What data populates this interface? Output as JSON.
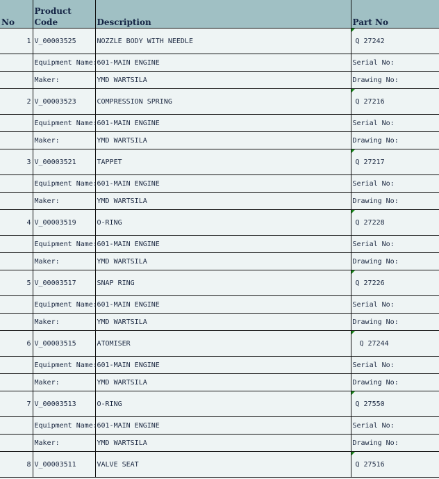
{
  "header": {
    "no": "No",
    "product_code": "Product Code",
    "description": "Description",
    "part_no": "Part No"
  },
  "labels": {
    "equipment": "Equipment Name:",
    "maker": "Maker:",
    "serial": "Serial No:",
    "drawing": "Drawing No:"
  },
  "colors": {
    "header_bg": "#a0c0c4",
    "body_bg": "#eef4f4",
    "comment_marker": "#1a8a1a"
  },
  "items": [
    {
      "no": "1",
      "code": "V_00003525",
      "description": "NOZZLE BODY WITH NEEDLE",
      "part_no": "Q 27242",
      "equipment": "601-MAIN ENGINE",
      "maker": "YMD WARTSILA"
    },
    {
      "no": "2",
      "code": "V_00003523",
      "description": "COMPRESSION SPRING",
      "part_no": "Q 27216",
      "equipment": "601-MAIN ENGINE",
      "maker": "YMD WARTSILA"
    },
    {
      "no": "3",
      "code": "V_00003521",
      "description": "TAPPET",
      "part_no": "Q 27217",
      "equipment": "601-MAIN ENGINE",
      "maker": "YMD WARTSILA"
    },
    {
      "no": "4",
      "code": "V_00003519",
      "description": "O-RING",
      "part_no": "Q 27228",
      "equipment": "601-MAIN ENGINE",
      "maker": "YMD WARTSILA"
    },
    {
      "no": "5",
      "code": "V_00003517",
      "description": "SNAP RING",
      "part_no": "Q 27226",
      "equipment": "601-MAIN ENGINE",
      "maker": "YMD WARTSILA"
    },
    {
      "no": "6",
      "code": "V_00003515",
      "description": "ATOMISER",
      "part_no": "Q 27244",
      "equipment": "601-MAIN ENGINE",
      "maker": "YMD WARTSILA"
    },
    {
      "no": "7",
      "code": "V_00003513",
      "description": "O-RING",
      "part_no": "Q 27550",
      "equipment": "601-MAIN ENGINE",
      "maker": "YMD WARTSILA"
    },
    {
      "no": "8",
      "code": "V_00003511",
      "description": "VALVE SEAT",
      "part_no": "Q 27516"
    }
  ]
}
